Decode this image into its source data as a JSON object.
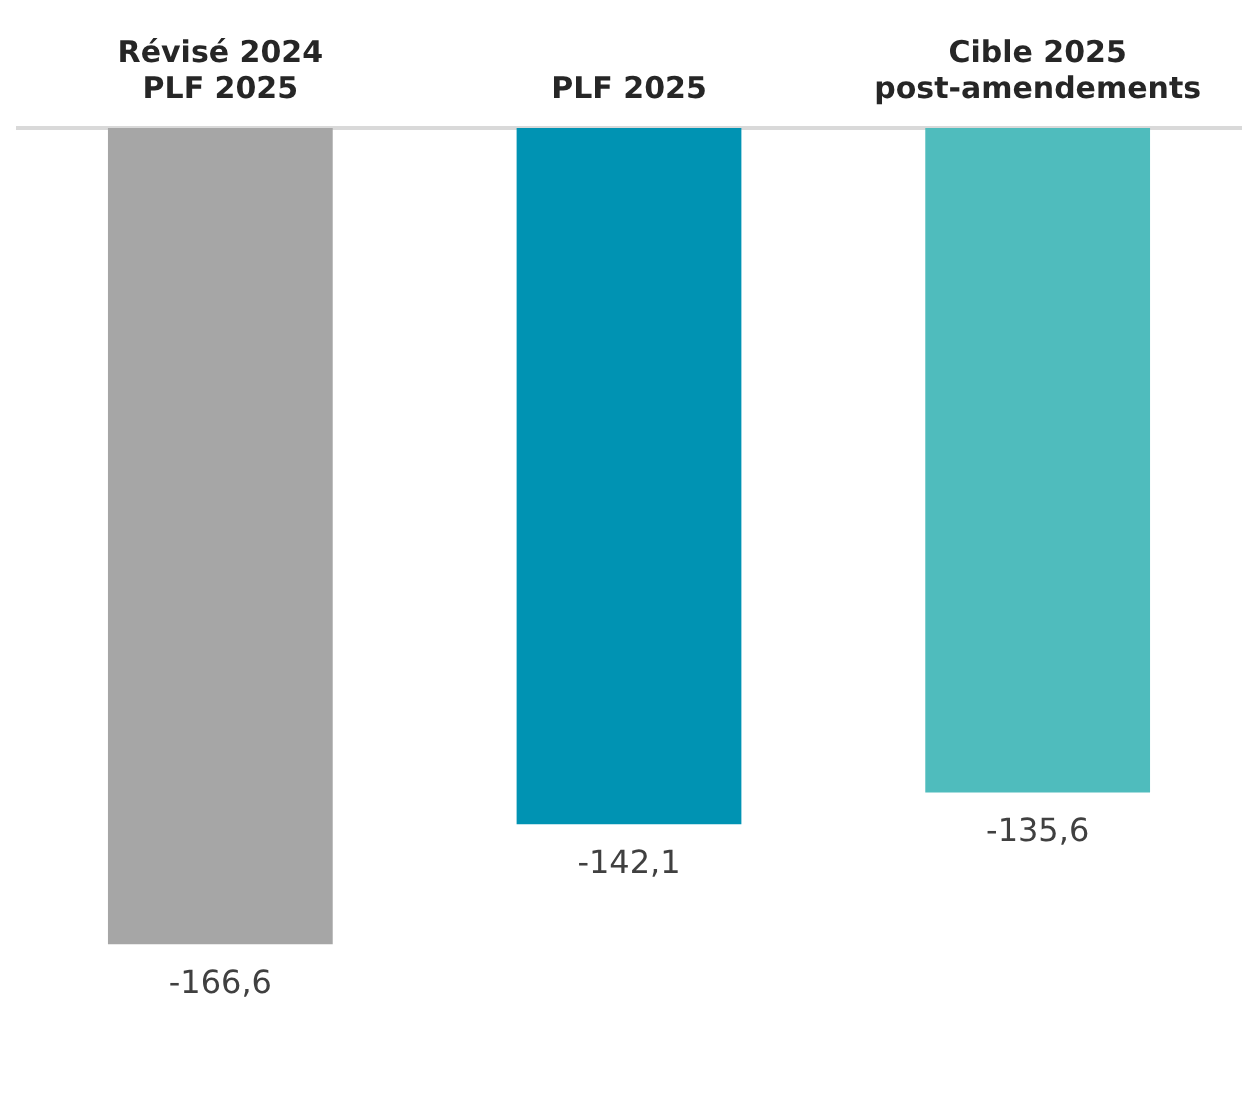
{
  "chart_data": {
    "type": "bar",
    "categories": [
      "Révisé 2024\nPLF 2025",
      "PLF 2025",
      "Cible 2025\npost-amendements"
    ],
    "values": [
      -166.6,
      -142.1,
      -135.6
    ],
    "colors": [
      "#a6a6a6",
      "#0093b3",
      "#4fbcbd"
    ],
    "value_labels": [
      "-166,6",
      "-142,1",
      "-135,6"
    ],
    "grid": false,
    "legend": false
  }
}
